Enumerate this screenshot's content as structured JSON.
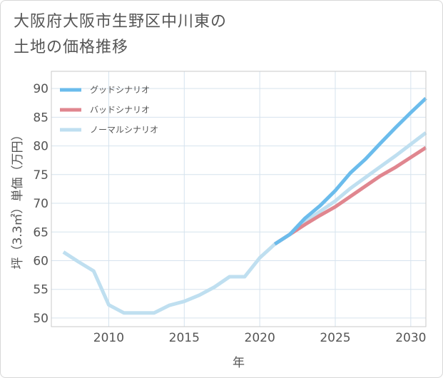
{
  "title_lines": [
    "大阪府大阪市生野区中川東の",
    "土地の価格推移"
  ],
  "chart_data": {
    "type": "line",
    "title": "大阪府大阪市生野区中川東の土地の価格推移",
    "xlabel": "年",
    "ylabel": "坪（3.3㎡）単価（万円）",
    "xlim": [
      2006.2,
      2031
    ],
    "ylim": [
      48.5,
      93
    ],
    "xticks": [
      2010,
      2015,
      2020,
      2025,
      2030
    ],
    "yticks": [
      50,
      55,
      60,
      65,
      70,
      75,
      80,
      85,
      90
    ],
    "grid": true,
    "legend_position": "top-left",
    "series": [
      {
        "name": "グッドシナリオ",
        "color": "#6bbcec",
        "x": [
          2021,
          2022,
          2023,
          2024,
          2025,
          2026,
          2027,
          2028,
          2029,
          2030,
          2031
        ],
        "y": [
          62.9,
          64.6,
          67.4,
          69.6,
          72.2,
          75.3,
          77.7,
          80.5,
          83.2,
          85.8,
          88.3
        ]
      },
      {
        "name": "バッドシナリオ",
        "color": "#e0868f",
        "x": [
          2021,
          2022,
          2023,
          2024,
          2025,
          2026,
          2027,
          2028,
          2029,
          2030,
          2031
        ],
        "y": [
          62.9,
          64.6,
          66.3,
          67.9,
          69.4,
          71.2,
          73.0,
          74.8,
          76.3,
          78.0,
          79.7
        ]
      },
      {
        "name": "ノーマルシナリオ",
        "color": "#bfdff0",
        "x": [
          2007,
          2008,
          2009,
          2010,
          2011,
          2012,
          2013,
          2014,
          2015,
          2016,
          2017,
          2018,
          2019,
          2020,
          2021,
          2022,
          2023,
          2024,
          2025,
          2026,
          2027,
          2028,
          2029,
          2030,
          2031
        ],
        "y": [
          61.5,
          59.8,
          58.2,
          52.3,
          50.9,
          50.9,
          50.9,
          52.2,
          52.9,
          54.0,
          55.4,
          57.2,
          57.2,
          60.5,
          62.9,
          64.6,
          66.8,
          68.6,
          70.4,
          72.6,
          74.5,
          76.4,
          78.3,
          80.3,
          82.3
        ]
      }
    ]
  }
}
